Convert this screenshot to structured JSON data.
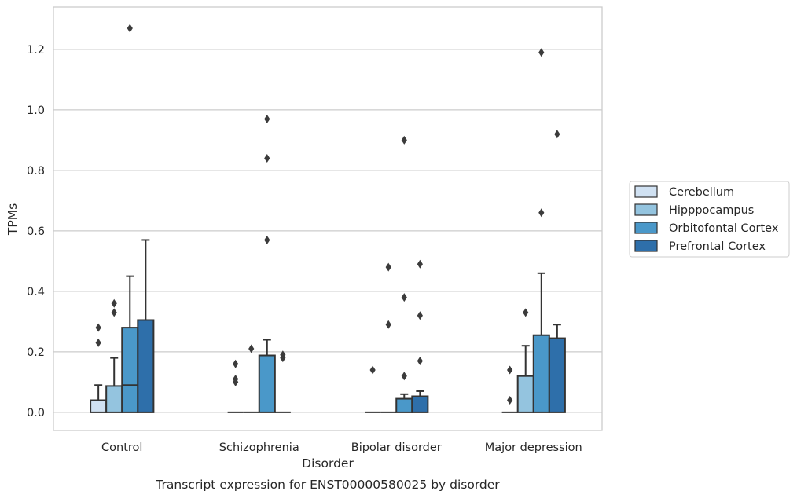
{
  "chart_data": {
    "type": "bar",
    "xlabel": "Disorder",
    "ylabel": "TPMs",
    "caption": "Transcript expression for ENST00000580025 by disorder",
    "ylim": [
      -0.06,
      1.34
    ],
    "yticks": [
      0.0,
      0.2,
      0.4,
      0.6,
      0.8,
      1.0,
      1.2
    ],
    "ytick_labels": [
      "0.0",
      "0.2",
      "0.4",
      "0.6",
      "0.8",
      "1.0",
      "1.2"
    ],
    "grid": "horizontal",
    "legend_position": "right",
    "categories": [
      "Control",
      "Schizophrenia",
      "Bipolar disorder",
      "Major depression"
    ],
    "series": [
      {
        "name": "Cerebellum",
        "color": "#d0e1f2",
        "values": [
          0.04,
          0.0,
          0.0,
          0.0
        ],
        "error_upper": [
          0.09,
          null,
          null,
          null
        ],
        "outliers": [
          [
            0.23,
            0.28
          ],
          [
            0.1,
            0.11,
            0.16
          ],
          [
            0.14
          ],
          [
            0.04,
            0.14
          ]
        ]
      },
      {
        "name": "Hipppocampus",
        "color": "#94c4df",
        "values": [
          0.087,
          0.0,
          0.0,
          0.12
        ],
        "error_upper": [
          0.18,
          null,
          null,
          0.22
        ],
        "outliers": [
          [
            0.33,
            0.36
          ],
          [
            0.21
          ],
          [
            0.29,
            0.48
          ],
          [
            0.33
          ]
        ]
      },
      {
        "name": "Orbitofontal Cortex",
        "color": "#4a98c9",
        "values": [
          0.28,
          0.188,
          0.045,
          0.255
        ],
        "inner_line": [
          0.09,
          null,
          null,
          null
        ],
        "error_upper": [
          0.45,
          0.24,
          0.06,
          0.46
        ],
        "outliers": [
          [
            1.27
          ],
          [
            0.57,
            0.84,
            0.97
          ],
          [
            0.12,
            0.38,
            0.9
          ],
          [
            0.66,
            1.19
          ]
        ]
      },
      {
        "name": "Prefrontal Cortex",
        "color": "#2e6faa",
        "values": [
          0.305,
          0.0,
          0.053,
          0.245
        ],
        "error_upper": [
          0.57,
          null,
          0.07,
          0.29
        ],
        "outliers": [
          [],
          [
            0.18,
            0.19
          ],
          [
            0.17,
            0.32,
            0.49
          ],
          [
            0.92
          ]
        ]
      }
    ]
  }
}
